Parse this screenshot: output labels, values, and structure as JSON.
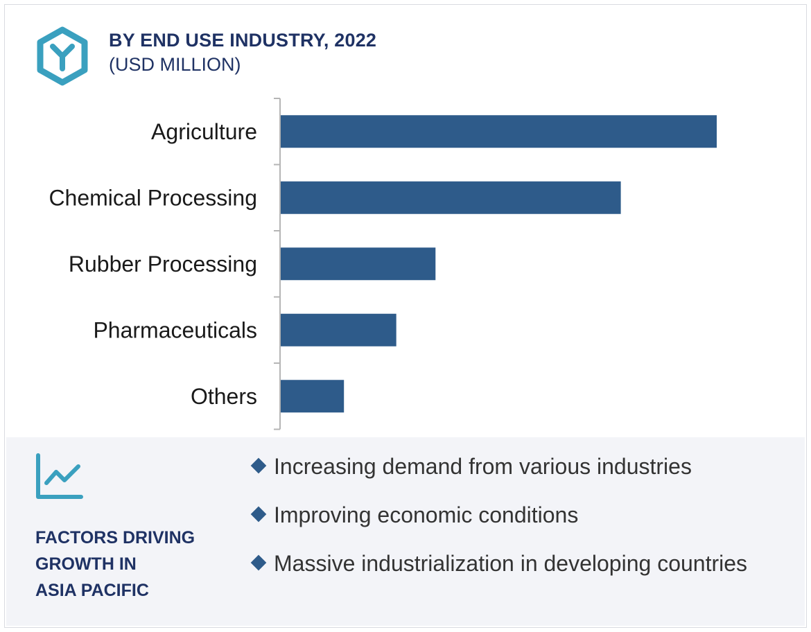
{
  "header": {
    "title": "BY END USE INDUSTRY, 2022",
    "subtitle": "(USD MILLION)",
    "icon": "hexagon-y-icon"
  },
  "chart_data": {
    "type": "bar",
    "orientation": "horizontal",
    "title": "BY END USE INDUSTRY, 2022",
    "ylabel": "(USD MILLION)",
    "categories": [
      "Agriculture",
      "Chemical Processing",
      "Rubber Processing",
      "Pharmaceuticals",
      "Others"
    ],
    "values": [
      100,
      78,
      35.5,
      26.5,
      14.5
    ],
    "xlim": [
      0,
      100
    ],
    "grid": false,
    "legend": "none",
    "color": "#2e5b8a"
  },
  "factors": {
    "icon": "line-chart-icon",
    "title_lines": [
      "FACTORS DRIVING",
      "GROWTH IN",
      "ASIA PACIFIC"
    ],
    "items": [
      "Increasing demand from various industries",
      "Improving economic conditions",
      "Massive industrialization in developing countries"
    ]
  },
  "colors": {
    "bar": "#2e5b8a",
    "accent": "#3aa0bf",
    "navy": "#1f3264",
    "panel": "#f3f4f8"
  }
}
